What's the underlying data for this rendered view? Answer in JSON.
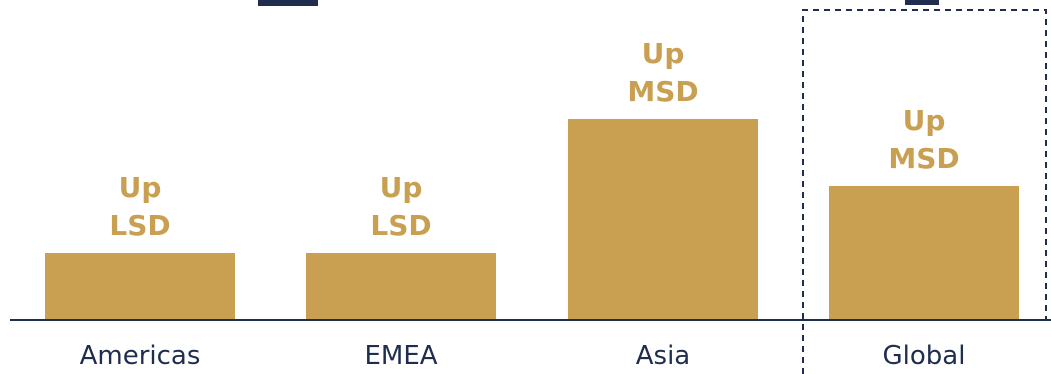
{
  "chart_data": {
    "type": "bar",
    "categories": [
      "Americas",
      "EMEA",
      "Asia",
      "Global"
    ],
    "values": [
      1,
      1,
      3,
      2
    ],
    "bar_labels": [
      [
        "Up",
        "LSD"
      ],
      [
        "Up",
        "LSD"
      ],
      [
        "Up",
        "MSD"
      ],
      [
        "Up",
        "MSD"
      ]
    ],
    "highlighted_category": "Global",
    "legend": "none",
    "grid": false
  },
  "colors": {
    "bar": "#C9A052",
    "bar_label": "#C9A052",
    "axis": "#1F2D4E",
    "category_text": "#1F2D4E",
    "highlight_border": "#1F2D4E"
  }
}
